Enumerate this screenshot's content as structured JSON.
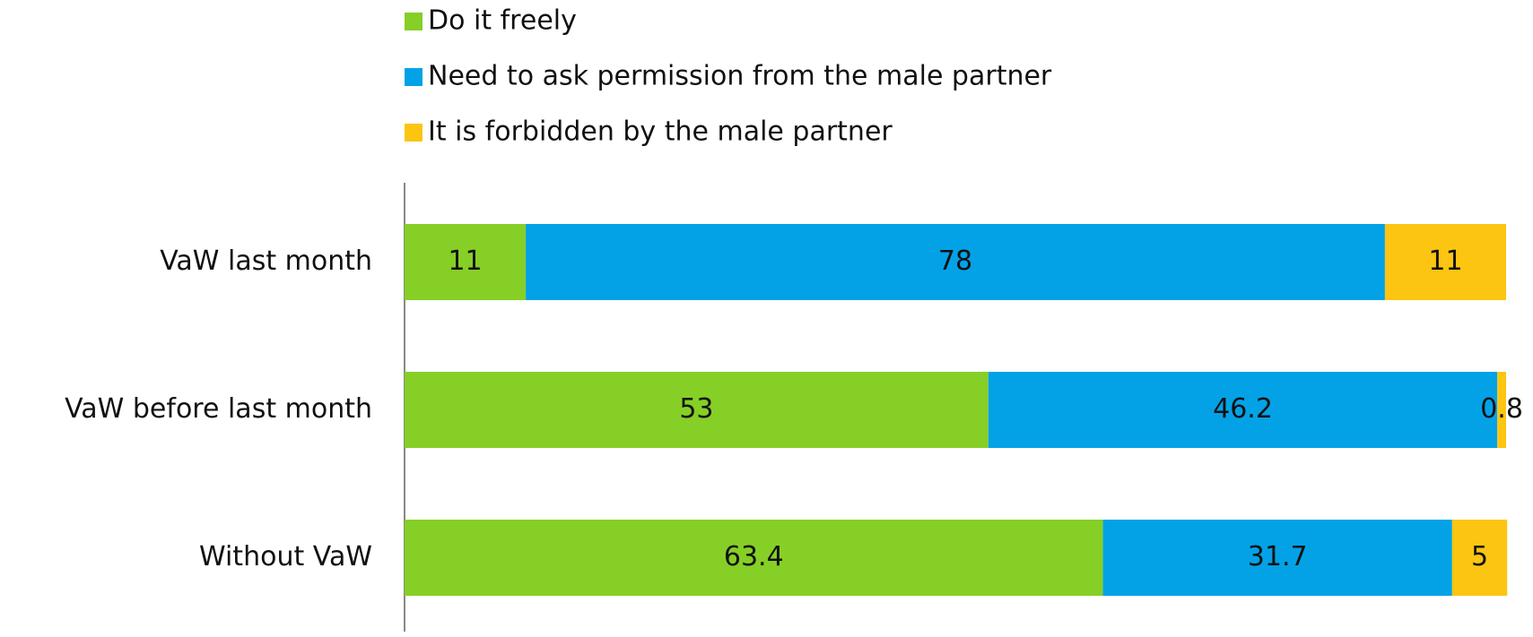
{
  "chart_data": {
    "type": "stacked-bar",
    "orientation": "horizontal",
    "categories": [
      "VaW last month",
      "VaW before last month",
      "Without VaW"
    ],
    "series": [
      {
        "name": "Do it freely",
        "color": "#86cf26",
        "values": [
          11,
          53,
          63.4
        ]
      },
      {
        "name": "Need to ask permission from the male partner",
        "color": "#03a2e6",
        "values": [
          78,
          46.2,
          31.7
        ]
      },
      {
        "name": "It is forbidden by the male partner",
        "color": "#fcc512",
        "values": [
          11,
          0.8,
          5
        ]
      }
    ],
    "xlim": [
      0,
      100
    ],
    "legend": "top",
    "data_labels": true
  }
}
